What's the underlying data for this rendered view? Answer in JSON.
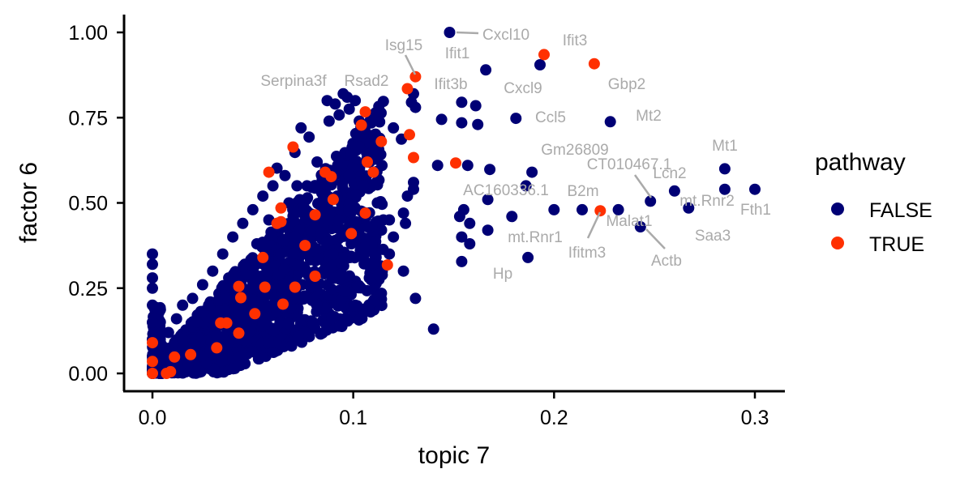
{
  "chart_data": {
    "type": "scatter",
    "title": "",
    "xlabel": "topic 7",
    "ylabel": "factor 6",
    "xlim": [
      -0.015,
      0.315
    ],
    "ylim": [
      -0.05,
      1.05
    ],
    "x_ticks": [
      {
        "value": 0.0,
        "label": "0.0"
      },
      {
        "value": 0.1,
        "label": "0.1"
      },
      {
        "value": 0.2,
        "label": "0.2"
      },
      {
        "value": 0.3,
        "label": "0.3"
      }
    ],
    "y_ticks": [
      {
        "value": 0.0,
        "label": "0.00"
      },
      {
        "value": 0.25,
        "label": "0.25"
      },
      {
        "value": 0.5,
        "label": "0.50"
      },
      {
        "value": 0.75,
        "label": "0.75"
      },
      {
        "value": 1.0,
        "label": "1.00"
      }
    ],
    "grid": false,
    "legend": {
      "title": "pathway",
      "position": "right"
    },
    "series": [
      {
        "name": "FALSE",
        "color": "#000075",
        "points": [
          [
            0.148,
            1.0
          ],
          [
            0.193,
            0.905
          ],
          [
            0.166,
            0.89
          ],
          [
            0.13,
            0.82
          ],
          [
            0.129,
            0.795
          ],
          [
            0.131,
            0.78
          ],
          [
            0.154,
            0.795
          ],
          [
            0.161,
            0.785
          ],
          [
            0.144,
            0.745
          ],
          [
            0.154,
            0.735
          ],
          [
            0.162,
            0.73
          ],
          [
            0.181,
            0.748
          ],
          [
            0.228,
            0.738
          ],
          [
            0.095,
            0.82
          ],
          [
            0.097,
            0.81
          ],
          [
            0.101,
            0.8
          ],
          [
            0.087,
            0.8
          ],
          [
            0.091,
            0.79
          ],
          [
            0.098,
            0.775
          ],
          [
            0.093,
            0.758
          ],
          [
            0.103,
            0.74
          ],
          [
            0.088,
            0.74
          ],
          [
            0.074,
            0.72
          ],
          [
            0.12,
            0.72
          ],
          [
            0.124,
            0.687
          ],
          [
            0.103,
            0.665
          ],
          [
            0.11,
            0.652
          ],
          [
            0.078,
            0.693
          ],
          [
            0.071,
            0.648
          ],
          [
            0.062,
            0.602
          ],
          [
            0.142,
            0.61
          ],
          [
            0.157,
            0.61
          ],
          [
            0.168,
            0.598
          ],
          [
            0.189,
            0.59
          ],
          [
            0.186,
            0.55
          ],
          [
            0.167,
            0.51
          ],
          [
            0.13,
            0.54
          ],
          [
            0.155,
            0.48
          ],
          [
            0.153,
            0.46
          ],
          [
            0.167,
            0.42
          ],
          [
            0.158,
            0.44
          ],
          [
            0.154,
            0.4
          ],
          [
            0.158,
            0.38
          ],
          [
            0.154,
            0.328
          ],
          [
            0.179,
            0.46
          ],
          [
            0.2,
            0.48
          ],
          [
            0.214,
            0.48
          ],
          [
            0.232,
            0.48
          ],
          [
            0.248,
            0.505
          ],
          [
            0.26,
            0.535
          ],
          [
            0.267,
            0.485
          ],
          [
            0.243,
            0.43
          ],
          [
            0.187,
            0.34
          ],
          [
            0.285,
            0.6
          ],
          [
            0.285,
            0.54
          ],
          [
            0.3,
            0.54
          ],
          [
            0.14,
            0.13
          ],
          [
            0.131,
            0.22
          ],
          [
            0.125,
            0.3
          ],
          [
            0.11,
            0.32
          ],
          [
            0.12,
            0.4
          ],
          [
            0.115,
            0.45
          ],
          [
            0.125,
            0.47
          ],
          [
            0.127,
            0.52
          ],
          [
            0.13,
            0.56
          ],
          [
            0.126,
            0.44
          ],
          [
            0.118,
            0.35
          ],
          [
            0.108,
            0.28
          ],
          [
            0.101,
            0.2
          ],
          [
            0.096,
            0.24
          ],
          [
            0.089,
            0.31
          ],
          [
            0.08,
            0.36
          ],
          [
            0.073,
            0.42
          ],
          [
            0.068,
            0.5
          ],
          [
            0.06,
            0.55
          ],
          [
            0.055,
            0.52
          ],
          [
            0.05,
            0.48
          ],
          [
            0.045,
            0.44
          ],
          [
            0.04,
            0.4
          ],
          [
            0.035,
            0.35
          ],
          [
            0.03,
            0.3
          ],
          [
            0.025,
            0.26
          ],
          [
            0.02,
            0.22
          ],
          [
            0.015,
            0.2
          ],
          [
            0.012,
            0.16
          ],
          [
            0.008,
            0.12
          ],
          [
            0.005,
            0.08
          ],
          [
            0.0,
            0.35
          ],
          [
            0.0,
            0.32
          ],
          [
            0.0,
            0.28
          ],
          [
            0.0,
            0.25
          ],
          [
            0.0,
            0.2
          ],
          [
            0.0,
            0.15
          ],
          [
            0.0,
            0.1
          ],
          [
            0.0,
            0.05
          ],
          [
            0.0,
            0.0
          ],
          [
            0.082,
            0.62
          ],
          [
            0.085,
            0.57
          ],
          [
            0.077,
            0.55
          ],
          [
            0.092,
            0.52
          ],
          [
            0.098,
            0.58
          ],
          [
            0.105,
            0.55
          ],
          [
            0.112,
            0.5
          ],
          [
            0.118,
            0.45
          ],
          [
            0.107,
            0.43
          ],
          [
            0.099,
            0.38
          ],
          [
            0.09,
            0.35
          ],
          [
            0.085,
            0.3
          ],
          [
            0.078,
            0.26
          ],
          [
            0.07,
            0.22
          ],
          [
            0.062,
            0.18
          ],
          [
            0.055,
            0.15
          ],
          [
            0.048,
            0.12
          ],
          [
            0.04,
            0.1
          ],
          [
            0.033,
            0.07
          ],
          [
            0.025,
            0.05
          ],
          [
            0.018,
            0.03
          ],
          [
            0.01,
            0.01
          ],
          [
            0.066,
            0.58
          ],
          [
            0.072,
            0.55
          ],
          [
            0.058,
            0.45
          ],
          [
            0.052,
            0.38
          ],
          [
            0.046,
            0.32
          ],
          [
            0.038,
            0.28
          ],
          [
            0.028,
            0.2
          ],
          [
            0.022,
            0.15
          ],
          [
            0.015,
            0.1
          ],
          [
            0.045,
            0.2
          ],
          [
            0.05,
            0.25
          ],
          [
            0.057,
            0.3
          ],
          [
            0.064,
            0.35
          ],
          [
            0.071,
            0.4
          ],
          [
            0.078,
            0.45
          ],
          [
            0.086,
            0.48
          ],
          [
            0.093,
            0.45
          ],
          [
            0.1,
            0.42
          ]
        ]
      },
      {
        "name": "TRUE",
        "color": "#ff3000",
        "points": [
          [
            0.195,
            0.935
          ],
          [
            0.22,
            0.908
          ],
          [
            0.131,
            0.87
          ],
          [
            0.127,
            0.835
          ],
          [
            0.106,
            0.767
          ],
          [
            0.104,
            0.728
          ],
          [
            0.128,
            0.7
          ],
          [
            0.114,
            0.68
          ],
          [
            0.07,
            0.664
          ],
          [
            0.13,
            0.633
          ],
          [
            0.151,
            0.617
          ],
          [
            0.107,
            0.62
          ],
          [
            0.11,
            0.59
          ],
          [
            0.058,
            0.59
          ],
          [
            0.086,
            0.59
          ],
          [
            0.089,
            0.577
          ],
          [
            0.09,
            0.51
          ],
          [
            0.106,
            0.47
          ],
          [
            0.081,
            0.465
          ],
          [
            0.064,
            0.485
          ],
          [
            0.064,
            0.445
          ],
          [
            0.062,
            0.44
          ],
          [
            0.076,
            0.375
          ],
          [
            0.099,
            0.41
          ],
          [
            0.055,
            0.34
          ],
          [
            0.117,
            0.318
          ],
          [
            0.081,
            0.285
          ],
          [
            0.043,
            0.255
          ],
          [
            0.056,
            0.253
          ],
          [
            0.071,
            0.253
          ],
          [
            0.044,
            0.222
          ],
          [
            0.051,
            0.175
          ],
          [
            0.065,
            0.203
          ],
          [
            0.034,
            0.148
          ],
          [
            0.037,
            0.148
          ],
          [
            0.043,
            0.118
          ],
          [
            0.032,
            0.075
          ],
          [
            0.019,
            0.055
          ],
          [
            0.011,
            0.048
          ],
          [
            0.0,
            0.09
          ],
          [
            0.0,
            0.035
          ],
          [
            0.009,
            0.005
          ],
          [
            0.007,
            0.0
          ],
          [
            0.0,
            0.0
          ],
          [
            0.223,
            0.477
          ]
        ]
      }
    ],
    "annotations": [
      {
        "text": "Cxcl10",
        "x": 0.148,
        "y": 1.0
      },
      {
        "text": "Ifit1",
        "x": 0.148,
        "y": 1.0
      },
      {
        "text": "Ifit3",
        "x": 0.195,
        "y": 0.935
      },
      {
        "text": "Isg15",
        "x": 0.131,
        "y": 0.87
      },
      {
        "text": "Serpina3f",
        "x": 0.095,
        "y": 0.82
      },
      {
        "text": "Rsad2",
        "x": 0.106,
        "y": 0.8
      },
      {
        "text": "Ifit3b",
        "x": 0.13,
        "y": 0.82
      },
      {
        "text": "Cxcl9",
        "x": 0.193,
        "y": 0.905
      },
      {
        "text": "Gbp2",
        "x": 0.22,
        "y": 0.908
      },
      {
        "text": "Ccl5",
        "x": 0.181,
        "y": 0.748
      },
      {
        "text": "Mt2",
        "x": 0.228,
        "y": 0.738
      },
      {
        "text": "Mt1",
        "x": 0.285,
        "y": 0.6
      },
      {
        "text": "Gm26809",
        "x": 0.189,
        "y": 0.59
      },
      {
        "text": "CT010467.1",
        "x": 0.248,
        "y": 0.505
      },
      {
        "text": "Lcn2",
        "x": 0.26,
        "y": 0.535
      },
      {
        "text": "AC160336.1",
        "x": 0.167,
        "y": 0.51
      },
      {
        "text": "B2m",
        "x": 0.2,
        "y": 0.48
      },
      {
        "text": "mt.Rnr2",
        "x": 0.267,
        "y": 0.485
      },
      {
        "text": "Fth1",
        "x": 0.3,
        "y": 0.54
      },
      {
        "text": "Malat1",
        "x": 0.232,
        "y": 0.48
      },
      {
        "text": "Ifitm3",
        "x": 0.223,
        "y": 0.477
      },
      {
        "text": "mt.Rnr1",
        "x": 0.179,
        "y": 0.46
      },
      {
        "text": "Saa3",
        "x": 0.267,
        "y": 0.485
      },
      {
        "text": "Actb",
        "x": 0.243,
        "y": 0.43
      },
      {
        "text": "Hp",
        "x": 0.187,
        "y": 0.34
      }
    ]
  }
}
